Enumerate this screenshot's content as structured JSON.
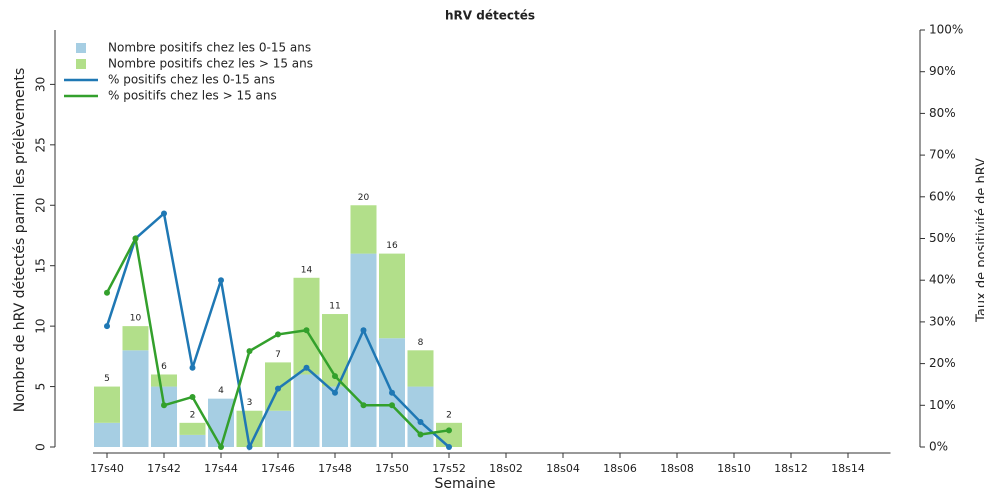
{
  "chart_data": {
    "type": "bar",
    "title": "hRV détectés",
    "x_label": "Semaine",
    "y_label": "Nombre de hRV détectés parmi les prélèvements",
    "y2_label": "Taux de positivité de hRV",
    "categories": [
      "17s40",
      null,
      "17s42",
      null,
      "17s44",
      null,
      "17s46",
      null,
      "17s48",
      null,
      "17s50",
      null,
      "17s52",
      null,
      "18s02",
      null,
      "18s04",
      null,
      "18s06",
      null,
      "18s08",
      null,
      "18s10",
      null,
      "18s12",
      null,
      "18s14",
      null
    ],
    "series": [
      {
        "name": "Nombre positifs chez les 0-15 ans",
        "type": "bar",
        "color": "#a6cee3",
        "values": [
          2,
          8,
          5,
          1,
          4,
          0,
          3,
          6,
          5,
          16,
          9,
          5,
          0,
          null,
          null,
          null,
          null,
          null,
          null,
          null,
          null,
          null,
          null,
          null,
          null,
          null,
          null,
          null
        ]
      },
      {
        "name": "Nombre positifs chez les > 15 ans",
        "type": "bar",
        "color": "#b2df8a",
        "values": [
          3,
          2,
          1,
          1,
          0,
          3,
          4,
          8,
          6,
          4,
          7,
          3,
          2,
          null,
          null,
          null,
          null,
          null,
          null,
          null,
          null,
          null,
          null,
          null,
          null,
          null,
          null,
          null
        ]
      },
      {
        "name": "% positifs chez les 0-15 ans",
        "type": "line",
        "axis": "y2",
        "color": "#1f78b4",
        "values": [
          29,
          50,
          56,
          19,
          40,
          0,
          14,
          19,
          13,
          28,
          13,
          6,
          0,
          null,
          null,
          null,
          null,
          null,
          null,
          null,
          null,
          null,
          null,
          null,
          null,
          null,
          null,
          null
        ]
      },
      {
        "name": "% positifs chez les > 15 ans",
        "type": "line",
        "axis": "y2",
        "color": "#33a02c",
        "values": [
          37,
          50,
          10,
          12,
          0,
          23,
          27,
          28,
          17,
          10,
          10,
          3,
          4,
          null,
          null,
          null,
          null,
          null,
          null,
          null,
          null,
          null,
          null,
          null,
          null,
          null,
          null,
          null
        ]
      }
    ],
    "totals": [
      5,
      10,
      6,
      2,
      4,
      3,
      7,
      14,
      11,
      20,
      16,
      8,
      2,
      null,
      null,
      null,
      null,
      null,
      null,
      null,
      null,
      null,
      null,
      null,
      null,
      null,
      null,
      null
    ],
    "ylim": [
      0,
      34.5
    ],
    "yticks": [
      0,
      5,
      10,
      15,
      20,
      25,
      30
    ],
    "y2lim": [
      0,
      100
    ],
    "y2ticks": [
      {
        "value": 0,
        "label": "0%"
      },
      {
        "value": 10,
        "label": "10%"
      },
      {
        "value": 20,
        "label": "20%"
      },
      {
        "value": 30,
        "label": "30%"
      },
      {
        "value": 40,
        "label": "40%"
      },
      {
        "value": 50,
        "label": "50%"
      },
      {
        "value": 60,
        "label": "60%"
      },
      {
        "value": 70,
        "label": "70%"
      },
      {
        "value": 80,
        "label": "80%"
      },
      {
        "value": 90,
        "label": "90%"
      },
      {
        "value": 100,
        "label": "100%"
      }
    ],
    "legend": "top-left"
  }
}
